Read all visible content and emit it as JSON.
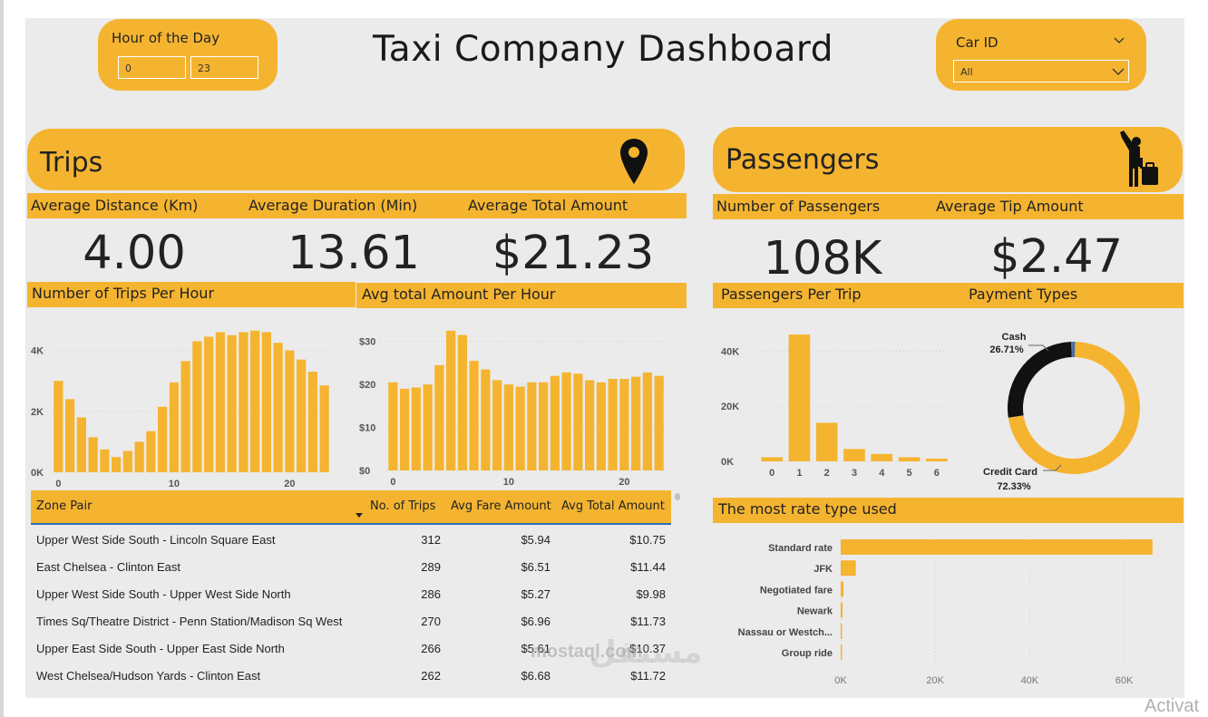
{
  "dashboard_title": "Taxi Company Dashboard",
  "hour_slicer": {
    "title": "Hour of the Day",
    "from": "0",
    "to": "23"
  },
  "car_slicer": {
    "title": "Car ID",
    "value": "All"
  },
  "trips_section": {
    "title": "Trips",
    "icon": "map-pin-icon",
    "kpis": [
      {
        "label": "Average Distance (Km)",
        "value": "4.00"
      },
      {
        "label": "Average Duration (Min)",
        "value": "13.61"
      },
      {
        "label": "Average Total Amount",
        "value": "$21.23"
      }
    ]
  },
  "passengers_section": {
    "title": "Passengers",
    "icon": "traveler-hailing-icon",
    "kpis": [
      {
        "label": "Number of Passengers",
        "value": "108K"
      },
      {
        "label": "Average Tip Amount",
        "value": "$2.47"
      }
    ]
  },
  "colors": {
    "accent": "#f5b430",
    "canvas": "#ebebeb",
    "dark": "#111111",
    "sort_line": "#2a6fb5"
  },
  "chart_data": [
    {
      "id": "trips_per_hour",
      "type": "bar",
      "title": "Number of Trips Per Hour",
      "x": [
        0,
        1,
        2,
        3,
        4,
        5,
        6,
        7,
        8,
        9,
        10,
        11,
        12,
        13,
        14,
        15,
        16,
        17,
        18,
        19,
        20,
        21,
        22,
        23
      ],
      "values": [
        3000,
        2400,
        1800,
        1150,
        750,
        500,
        700,
        1000,
        1350,
        2150,
        2950,
        3650,
        4300,
        4450,
        4600,
        4500,
        4600,
        4650,
        4600,
        4250,
        4000,
        3700,
        3300,
        2850
      ],
      "yticks": [
        "0K",
        "2K",
        "4K"
      ],
      "xticks": [
        "0",
        "10",
        "20"
      ],
      "ylim": [
        0,
        5000
      ]
    },
    {
      "id": "avg_amount_per_hour",
      "type": "bar",
      "title": "Avg total Amount Per Hour",
      "x": [
        0,
        1,
        2,
        3,
        4,
        5,
        6,
        7,
        8,
        9,
        10,
        11,
        12,
        13,
        14,
        15,
        16,
        17,
        18,
        19,
        20,
        21,
        22,
        23
      ],
      "values": [
        20.5,
        19,
        19.3,
        20,
        24.5,
        32.5,
        31.5,
        25.5,
        23.5,
        21,
        20,
        19.5,
        20.5,
        20.5,
        22,
        22.8,
        22.5,
        21,
        20.5,
        21.3,
        21.3,
        21.8,
        22.8,
        22
      ],
      "yticks": [
        "$0",
        "$10",
        "$20",
        "$30"
      ],
      "xticks": [
        "0",
        "10",
        "20"
      ],
      "ylim": [
        0,
        35
      ]
    },
    {
      "id": "passengers_per_trip",
      "type": "bar",
      "title": "Passengers Per Trip",
      "categories": [
        "0",
        "1",
        "2",
        "3",
        "4",
        "5",
        "6"
      ],
      "values": [
        1500,
        46000,
        14000,
        4500,
        2700,
        1500,
        1000
      ],
      "yticks": [
        "0K",
        "20K",
        "40K"
      ],
      "ylim": [
        0,
        48000
      ]
    },
    {
      "id": "payment_types",
      "type": "pie",
      "title": "Payment Types",
      "slices": [
        {
          "label": "Credit Card",
          "pct_label": "72.33%",
          "value": 72.33,
          "color": "#f5b430"
        },
        {
          "label": "Cash",
          "pct_label": "26.71%",
          "value": 26.71,
          "color": "#111111"
        },
        {
          "label": "",
          "pct_label": "",
          "value": 0.96,
          "color": "#4a6fa5"
        }
      ]
    },
    {
      "id": "rate_types",
      "type": "bar",
      "orientation": "horizontal",
      "title": "The most rate type used",
      "categories": [
        "Standard rate",
        "JFK",
        "Negotiated fare",
        "Newark",
        "Nassau or Westch...",
        "Group ride"
      ],
      "values": [
        66000,
        3200,
        600,
        400,
        150,
        100
      ],
      "xticks": [
        "0K",
        "20K",
        "40K",
        "60K"
      ],
      "xlim": [
        0,
        67000
      ]
    }
  ],
  "zone_table": {
    "columns": [
      "Zone Pair",
      "No. of Trips",
      "Avg Fare Amount",
      "Avg Total Amount"
    ],
    "rows": [
      [
        "Upper West Side South - Lincoln Square East",
        "312",
        "$5.94",
        "$10.75"
      ],
      [
        "East Chelsea - Clinton East",
        "289",
        "$6.51",
        "$11.44"
      ],
      [
        "Upper West Side South - Upper West Side North",
        "286",
        "$5.27",
        "$9.98"
      ],
      [
        "Times Sq/Theatre District - Penn Station/Madison Sq West",
        "270",
        "$6.96",
        "$11.73"
      ],
      [
        "Upper East Side South - Upper East Side North",
        "266",
        "$5.61",
        "$10.37"
      ],
      [
        "West Chelsea/Hudson Yards - Clinton East",
        "262",
        "$6.68",
        "$11.72"
      ]
    ]
  },
  "watermark": {
    "arabic": "مستقل",
    "latin": "mostaql.com"
  },
  "os_overlay": "Activat"
}
